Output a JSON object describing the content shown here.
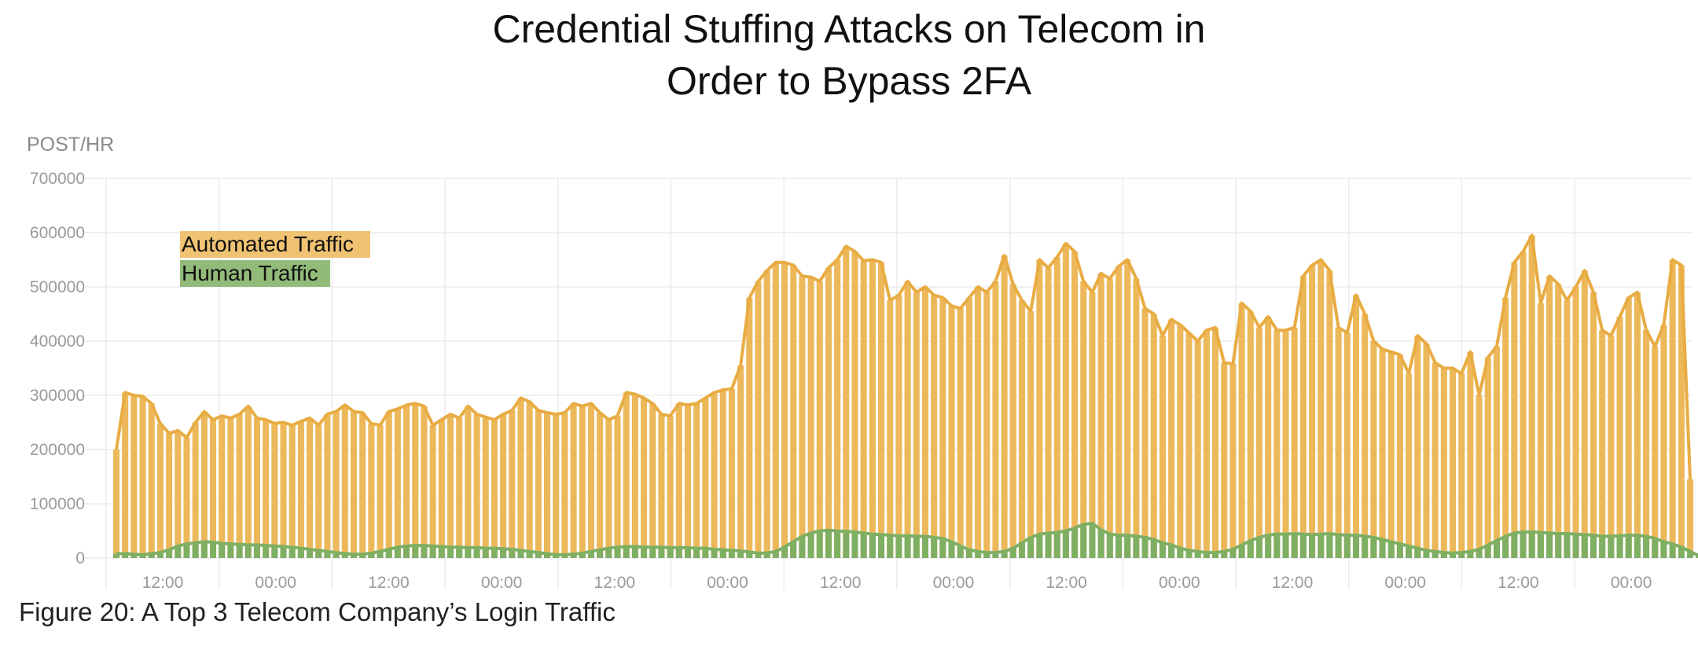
{
  "title_line1": "Credential Stuffing Attacks on Telecom in",
  "title_line2": "Order to Bypass 2FA",
  "caption": "Figure 20: A Top 3 Telecom Company’s Login Traffic",
  "colors": {
    "automated": "#EDB85A",
    "automated_line": "#E8AC43",
    "human": "#7FAF62",
    "grid": "#EBEBEB"
  },
  "chart_data": {
    "type": "area",
    "ylabel": "POST/HR",
    "ylim": [
      0,
      700000
    ],
    "yticks": [
      "0",
      "100000",
      "200000",
      "300000",
      "400000",
      "500000",
      "600000",
      "700000"
    ],
    "xticks": [
      "12:00",
      "00:00",
      "12:00",
      "00:00",
      "12:00",
      "00:00",
      "12:00",
      "00:00",
      "12:00",
      "00:00",
      "12:00",
      "00:00",
      "12:00",
      "00:00"
    ],
    "grid": true,
    "legend_position": "top-left",
    "series": [
      {
        "name": "Automated Traffic",
        "values": [
          200000,
          305000,
          300000,
          298000,
          285000,
          248000,
          230000,
          235000,
          222000,
          250000,
          270000,
          255000,
          262000,
          258000,
          265000,
          280000,
          258000,
          255000,
          248000,
          250000,
          245000,
          252000,
          258000,
          245000,
          265000,
          270000,
          282000,
          270000,
          268000,
          248000,
          245000,
          270000,
          275000,
          282000,
          285000,
          280000,
          245000,
          255000,
          265000,
          258000,
          280000,
          265000,
          260000,
          255000,
          265000,
          272000,
          295000,
          288000,
          272000,
          268000,
          265000,
          268000,
          285000,
          280000,
          285000,
          268000,
          255000,
          262000,
          305000,
          302000,
          295000,
          285000,
          265000,
          262000,
          285000,
          282000,
          285000,
          295000,
          305000,
          310000,
          312000,
          355000,
          480000,
          510000,
          530000,
          545000,
          545000,
          540000,
          520000,
          518000,
          510000,
          535000,
          550000,
          575000,
          565000,
          548000,
          550000,
          545000,
          475000,
          485000,
          510000,
          490000,
          500000,
          485000,
          480000,
          465000,
          460000,
          480000,
          500000,
          490000,
          510000,
          558000,
          505000,
          475000,
          455000,
          550000,
          535000,
          555000,
          580000,
          565000,
          510000,
          490000,
          525000,
          515000,
          538000,
          550000,
          515000,
          460000,
          450000,
          410000,
          440000,
          430000,
          415000,
          400000,
          420000,
          425000,
          360000,
          358000,
          470000,
          455000,
          425000,
          445000,
          420000,
          420000,
          425000,
          520000,
          540000,
          550000,
          530000,
          425000,
          415000,
          485000,
          450000,
          400000,
          385000,
          380000,
          375000,
          340000,
          410000,
          395000,
          360000,
          350000,
          350000,
          340000,
          380000,
          300000,
          370000,
          390000,
          480000,
          545000,
          565000,
          595000,
          470000,
          520000,
          505000,
          475000,
          500000,
          530000,
          490000,
          420000,
          410000,
          445000,
          480000,
          490000,
          420000,
          390000,
          430000,
          550000,
          540000,
          145000
        ],
        "render_color": "#EDB85A"
      },
      {
        "name": "Human Traffic",
        "values": [
          8000,
          8000,
          7000,
          6000,
          8000,
          10000,
          15000,
          22000,
          26000,
          28000,
          30000,
          29000,
          27000,
          26000,
          25000,
          24000,
          24000,
          23000,
          22000,
          21000,
          20000,
          18000,
          16000,
          14000,
          12000,
          10000,
          8000,
          7000,
          7000,
          9000,
          12000,
          16000,
          20000,
          22000,
          23000,
          23000,
          22000,
          21000,
          20000,
          20000,
          19000,
          19000,
          18000,
          18000,
          17000,
          16000,
          14000,
          12000,
          10000,
          8000,
          6000,
          6000,
          7000,
          9000,
          12000,
          15000,
          18000,
          20000,
          21000,
          21000,
          20000,
          20000,
          20000,
          19000,
          19000,
          19000,
          18000,
          18000,
          16000,
          15000,
          14000,
          13000,
          11000,
          9000,
          9000,
          12000,
          20000,
          30000,
          40000,
          46000,
          50000,
          51000,
          50000,
          49000,
          48000,
          46000,
          44000,
          43000,
          42000,
          41000,
          41000,
          40000,
          40000,
          38000,
          36000,
          30000,
          22000,
          15000,
          12000,
          10000,
          10000,
          12000,
          18000,
          28000,
          38000,
          44000,
          46000,
          47000,
          50000,
          55000,
          62000,
          64000,
          52000,
          44000,
          42000,
          42000,
          40000,
          38000,
          34000,
          28000,
          24000,
          18000,
          14000,
          12000,
          10000,
          10000,
          12000,
          16000,
          24000,
          32000,
          38000,
          42000,
          44000,
          44000,
          45000,
          44000,
          43000,
          44000,
          45000,
          43000,
          42000,
          42000,
          40000,
          38000,
          34000,
          30000,
          26000,
          22000,
          18000,
          14000,
          12000,
          10000,
          9000,
          10000,
          12000,
          16000,
          24000,
          32000,
          40000,
          46000,
          48000,
          48000,
          47000,
          46000,
          45000,
          45000,
          44000,
          43000,
          42000,
          40000,
          40000,
          41000,
          42000,
          42000,
          40000,
          36000,
          30000,
          26000,
          20000,
          12000,
          4000
        ],
        "render_color": "#7FAF62"
      }
    ]
  }
}
